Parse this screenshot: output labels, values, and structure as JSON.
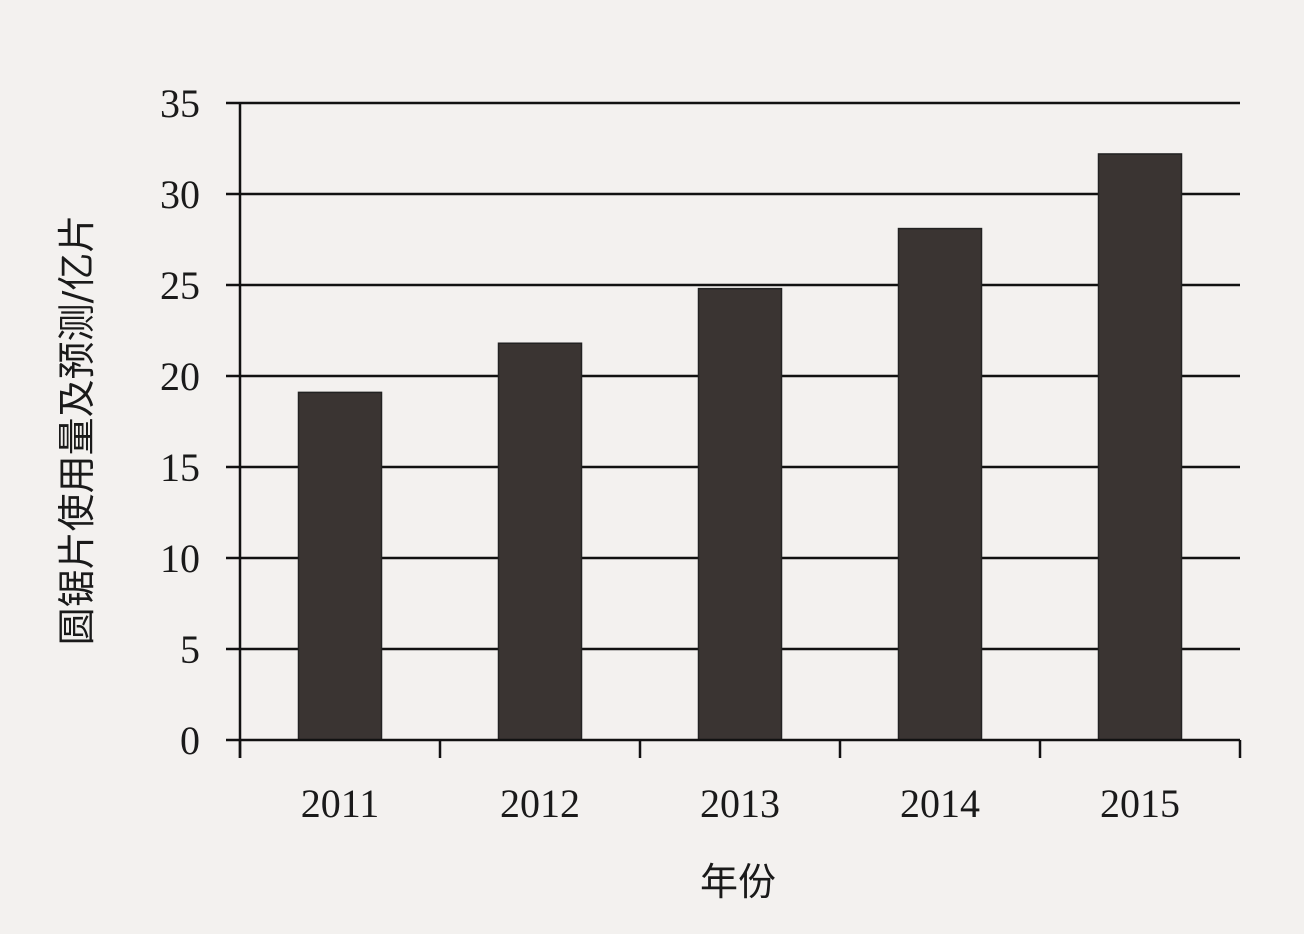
{
  "chart_data": {
    "type": "bar",
    "title": "",
    "xlabel": "年份",
    "ylabel": "圆锯片使用量及预测/亿片",
    "categories": [
      "2011",
      "2012",
      "2013",
      "2014",
      "2015"
    ],
    "values": [
      19.1,
      21.8,
      24.8,
      28.1,
      32.2
    ],
    "ylim": [
      0,
      35
    ],
    "yticks": [
      "0",
      "5",
      "10",
      "15",
      "20",
      "25",
      "30",
      "35"
    ],
    "grid": true,
    "legend": "none",
    "bar_color": "#3a3432"
  }
}
